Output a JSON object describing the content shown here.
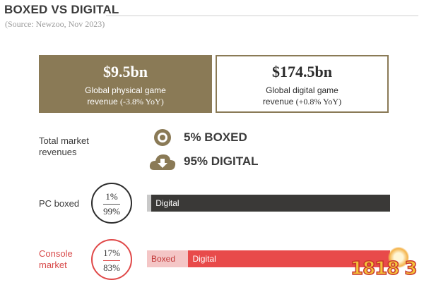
{
  "header": {
    "title": "BOXED VS DIGITAL",
    "source": "(Source: Newzoo, Nov 2023)"
  },
  "boxes": {
    "physical": {
      "value": "$9.5bn",
      "line1": "Global physical game",
      "line2_prefix": "revenue ",
      "line2_yoy": "(-3.8% YoY)"
    },
    "digital": {
      "value": "$174.5bn",
      "line1": "Global digital game",
      "line2_prefix": "revenue ",
      "line2_yoy": "(+0.8% YoY)"
    }
  },
  "total": {
    "label_line1": "Total market",
    "label_line2": "revenues",
    "boxed_text": "5% BOXED",
    "digital_text": "95% DIGITAL",
    "boxed_icon": "disc-icon",
    "digital_icon": "cloud-download-icon"
  },
  "pc": {
    "label": "PC boxed",
    "circle_top": "1%",
    "circle_bottom": "99%",
    "boxed_label": "",
    "digital_label": "Digital"
  },
  "console": {
    "label_line1": "Console",
    "label_line2": "market",
    "circle_top": "17%",
    "circle_bottom": "83%",
    "boxed_label": "Boxed",
    "digital_label": "Digital"
  },
  "watermark": {
    "text": "1818 3"
  },
  "colors": {
    "physical_box": "#8a7a56",
    "pc_digital": "#3a3937",
    "pc_boxed": "#c9c9c9",
    "console_digital": "#e84a4a",
    "console_boxed": "#f4c6c6"
  },
  "chart_data": {
    "type": "bar",
    "categories": [
      "PC boxed",
      "Console market"
    ],
    "series": [
      {
        "name": "Boxed",
        "values": [
          1,
          17
        ]
      },
      {
        "name": "Digital",
        "values": [
          99,
          83
        ]
      }
    ],
    "totals": {
      "boxed_share": 5,
      "digital_share": 95
    },
    "revenue_bn": {
      "physical": 9.5,
      "digital": 174.5
    },
    "yoy_percent": {
      "physical": -3.8,
      "digital": 0.8
    }
  }
}
